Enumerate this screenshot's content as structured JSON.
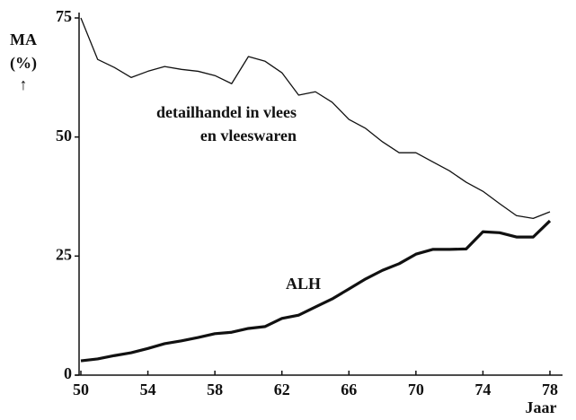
{
  "chart_data": {
    "type": "line",
    "x": [
      50,
      51,
      52,
      53,
      54,
      55,
      56,
      57,
      58,
      59,
      60,
      61,
      62,
      63,
      64,
      65,
      66,
      67,
      68,
      69,
      70,
      71,
      72,
      73,
      74,
      75,
      76,
      77,
      78
    ],
    "series": [
      {
        "color": "#111111",
        "width": 1.3,
        "values": [
          75,
          66.3,
          64.6,
          62.5,
          63.8,
          64.8,
          64.2,
          63.8,
          62.9,
          61.2,
          66.9,
          65.9,
          63.5,
          58.8,
          59.5,
          57.3,
          53.7,
          51.8,
          49,
          46.7,
          46.7,
          44.8,
          42.9,
          40.5,
          38.6,
          36,
          33.5,
          32.9,
          34.3
        ]
      },
      {
        "color": "#111111",
        "width": 3.2,
        "values": [
          3,
          3.4,
          4.1,
          4.7,
          5.6,
          6.6,
          7.2,
          7.9,
          8.7,
          9,
          9.8,
          10.2,
          11.9,
          12.6,
          14.3,
          16,
          18.1,
          20.2,
          22,
          23.4,
          25.4,
          26.4,
          26.4,
          26.5,
          30.1,
          29.9,
          29,
          29,
          32.4
        ]
      }
    ],
    "annotations": [
      "detailhandel in vlees",
      "en vleeswaren",
      "ALH"
    ],
    "y_label": [
      "MA",
      "(%)",
      "↑"
    ],
    "x_label": "Jaar",
    "xlim": [
      50,
      78
    ],
    "xticks": [
      50,
      54,
      58,
      62,
      66,
      70,
      74,
      78
    ],
    "ylim": [
      0,
      75
    ],
    "yticks": [
      0,
      25,
      50,
      75
    ]
  }
}
